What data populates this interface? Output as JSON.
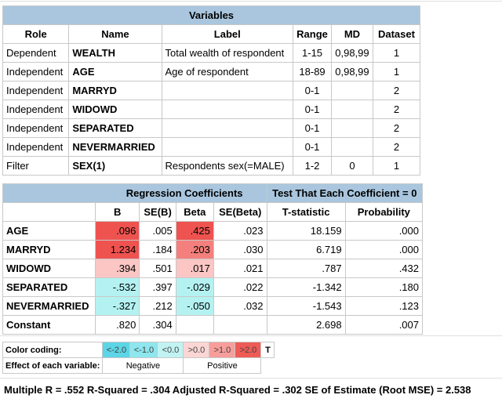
{
  "variables": {
    "title": "Variables",
    "headers": [
      "Role",
      "Name",
      "Label",
      "Range",
      "MD",
      "Dataset"
    ],
    "rows": [
      {
        "role": "Dependent",
        "name": "WEALTH",
        "label": "Total wealth of respondent",
        "range": "1-15",
        "md": "0,98,99",
        "dataset": "1"
      },
      {
        "role": "Independent",
        "name": "AGE",
        "label": "Age of respondent",
        "range": "18-89",
        "md": "0,98,99",
        "dataset": "1"
      },
      {
        "role": "Independent",
        "name": "MARRYD",
        "label": "",
        "range": "0-1",
        "md": "",
        "dataset": "2"
      },
      {
        "role": "Independent",
        "name": "WIDOWD",
        "label": "",
        "range": "0-1",
        "md": "",
        "dataset": "2"
      },
      {
        "role": "Independent",
        "name": "SEPARATED",
        "label": "",
        "range": "0-1",
        "md": "",
        "dataset": "2"
      },
      {
        "role": "Independent",
        "name": "NEVERMARRIED",
        "label": "",
        "range": "0-1",
        "md": "",
        "dataset": "2"
      },
      {
        "role": "Filter",
        "name": "SEX(1)",
        "label": "Respondents sex(=MALE)",
        "range": "1-2",
        "md": "0",
        "dataset": "1"
      }
    ]
  },
  "coefficients": {
    "title_left": "Regression Coefficients",
    "title_right": "Test That Each Coefficient = 0",
    "headers": [
      "",
      "B",
      "SE(B)",
      "Beta",
      "SE(Beta)",
      "T-statistic",
      "Probability"
    ],
    "rows": [
      {
        "name": "AGE",
        "b": ".096",
        "seb": ".005",
        "beta": ".425",
        "sebeta": ".023",
        "t": "18.159",
        "p": ".000"
      },
      {
        "name": "MARRYD",
        "b": "1.234",
        "seb": ".184",
        "beta": ".203",
        "sebeta": ".030",
        "t": "6.719",
        "p": ".000"
      },
      {
        "name": "WIDOWD",
        "b": ".394",
        "seb": ".501",
        "beta": ".017",
        "sebeta": ".021",
        "t": ".787",
        "p": ".432"
      },
      {
        "name": "SEPARATED",
        "b": "-.532",
        "seb": ".397",
        "beta": "-.029",
        "sebeta": ".022",
        "t": "-1.342",
        "p": ".180"
      },
      {
        "name": "NEVERMARRIED",
        "b": "-.327",
        "seb": ".212",
        "beta": "-.050",
        "sebeta": ".032",
        "t": "-1.543",
        "p": ".123"
      },
      {
        "name": "Constant",
        "b": ".820",
        "seb": ".304",
        "beta": "",
        "sebeta": "",
        "t": "2.698",
        "p": ".007"
      }
    ]
  },
  "legend": {
    "color_coding_label": "Color coding:",
    "bins": [
      "<-2.0",
      "<-1.0",
      "<0.0",
      ">0.0",
      ">1.0",
      ">2.0"
    ],
    "suffix": "T",
    "effect_label": "Effect of each variable:",
    "negative": "Negative",
    "positive": "Positive"
  },
  "summary": "Multiple R = .552  R-Squared = .304  Adjusted R-Squared = .302  SE of Estimate (Root MSE) = 2.538"
}
